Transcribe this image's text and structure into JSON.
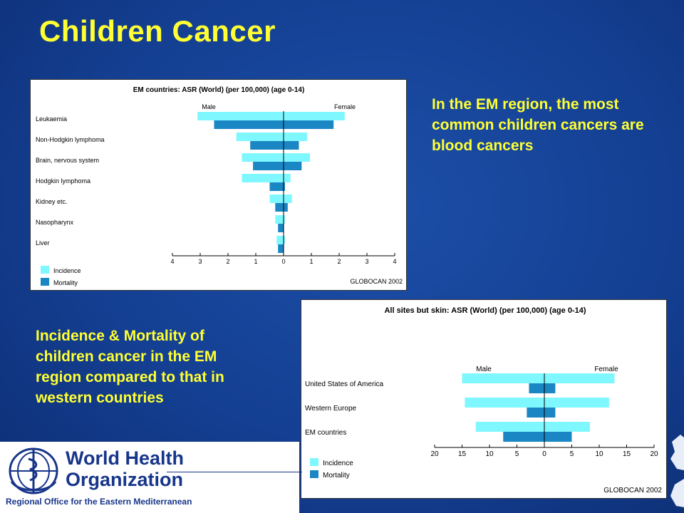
{
  "slide": {
    "title": "Children Cancer",
    "text_top": "In the EM region, the most common children cancers are blood cancers",
    "text_bottom": "Incidence & Mortality of children cancer in the EM region compared to that in western countries"
  },
  "logo": {
    "name_line1": "World Health",
    "name_line2": "Organization",
    "region": "Regional Office for the Eastern Mediterranean"
  },
  "colors": {
    "incidence": "#7ff7ff",
    "mortality": "#1a86c4",
    "title_text": "#ffff33",
    "background": "#143f92"
  },
  "chart_data": [
    {
      "type": "bar",
      "orientation": "horizontal-butterfly",
      "title": "EM countries: ASR (World) (per 100,000) (age  0-14)",
      "left_label": "Male",
      "right_label": "Female",
      "source": "GLOBOCAN 2002",
      "xlim": [
        -4,
        4
      ],
      "xticks": [
        "4",
        "3",
        "2",
        "1",
        "0",
        "1",
        "2",
        "3",
        "4"
      ],
      "categories": [
        "Leukaemia",
        "Non-Hodgkin lymphoma",
        "Brain, nervous system",
        "Hodgkin lymphoma",
        "Kidney etc.",
        "Nasopharynx",
        "Liver"
      ],
      "series": [
        {
          "name": "Incidence",
          "male": [
            3.1,
            1.7,
            1.5,
            1.5,
            0.5,
            0.3,
            0.25
          ],
          "female": [
            2.2,
            0.85,
            0.95,
            0.25,
            0.3,
            0.05,
            0.05
          ]
        },
        {
          "name": "Mortality",
          "male": [
            2.5,
            1.2,
            1.1,
            0.5,
            0.3,
            0.2,
            0.2
          ],
          "female": [
            1.8,
            0.55,
            0.65,
            0.05,
            0.15,
            0.0,
            0.0
          ]
        }
      ]
    },
    {
      "type": "bar",
      "orientation": "horizontal-butterfly",
      "title": "All sites but skin: ASR (World) (per 100,000) (age  0-14)",
      "left_label": "Male",
      "right_label": "Female",
      "source": "GLOBOCAN 2002",
      "xlim": [
        -20,
        20
      ],
      "xticks": [
        "20",
        "15",
        "10",
        "5",
        "0",
        "5",
        "10",
        "15",
        "20"
      ],
      "categories": [
        "United States of America",
        "Western Europe",
        "EM countries"
      ],
      "series": [
        {
          "name": "Incidence",
          "male": [
            15,
            14.5,
            12.5
          ],
          "female": [
            12.8,
            11.8,
            8.3
          ]
        },
        {
          "name": "Mortality",
          "male": [
            2.8,
            3.2,
            7.5
          ],
          "female": [
            2.0,
            2.0,
            5.0
          ]
        }
      ]
    }
  ]
}
